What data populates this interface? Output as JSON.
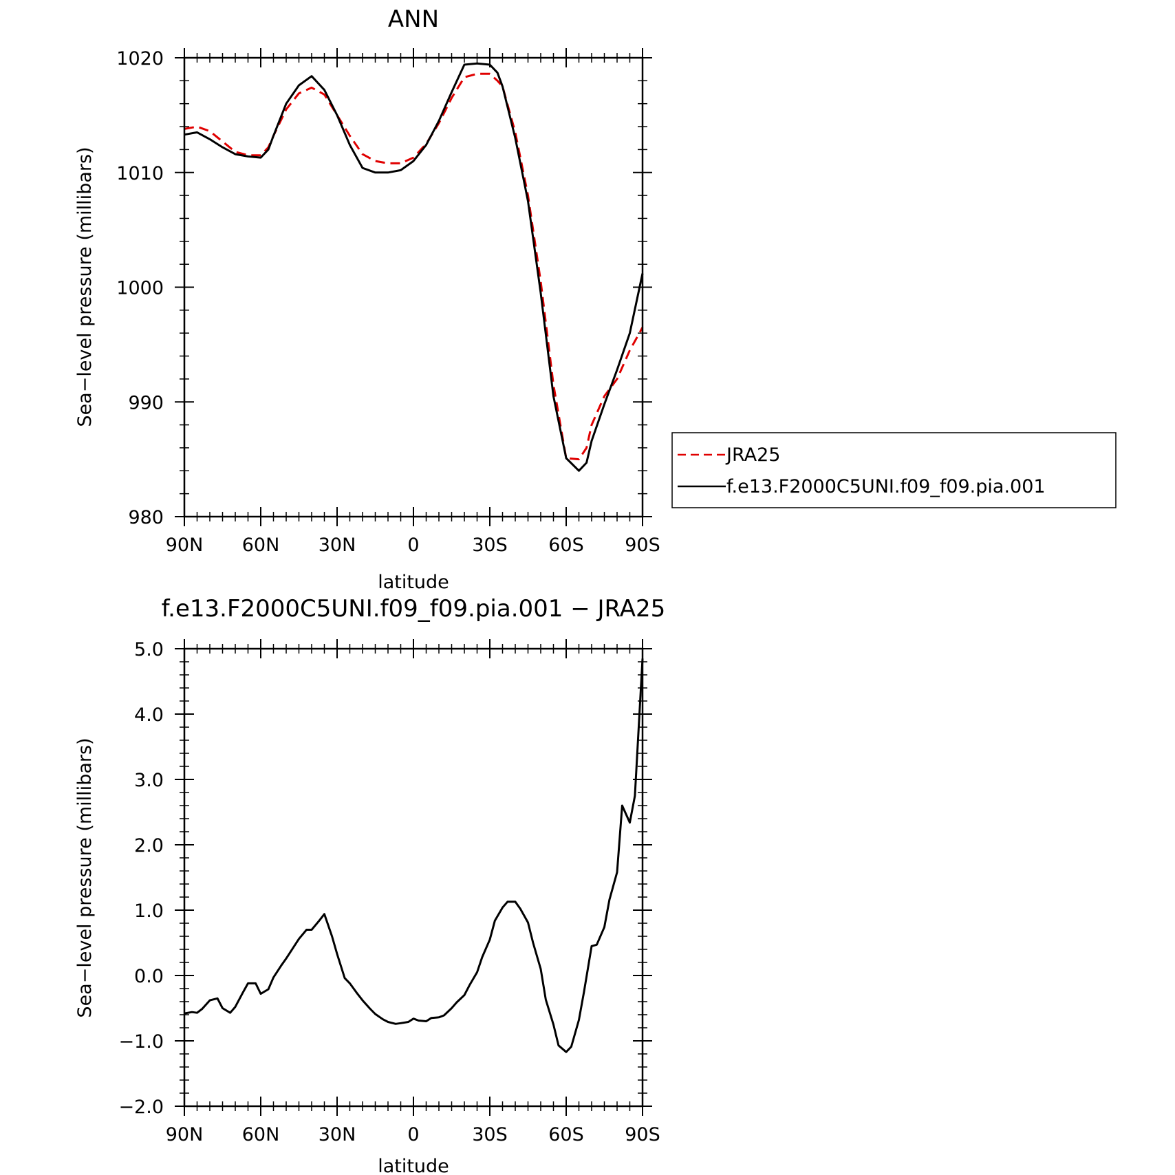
{
  "chart_data": [
    {
      "type": "line",
      "title": "ANN",
      "xlabel": "latitude",
      "ylabel": "Sea−level pressure (millibars)",
      "x_unit": "degrees latitude (positive = N, negative = S)",
      "xlim": [
        90,
        -90
      ],
      "ylim": [
        980,
        1020
      ],
      "x_ticks": [
        90,
        60,
        30,
        0,
        -30,
        -60,
        -90
      ],
      "x_tick_labels": [
        "90N",
        "60N",
        "30N",
        "0",
        "30S",
        "60S",
        "90S"
      ],
      "y_ticks": [
        1020,
        1010,
        1000,
        990,
        980
      ],
      "y_tick_labels": [
        "1020",
        "1010",
        "1000",
        "990",
        "980"
      ],
      "grid": false,
      "legend_position": "right",
      "series": [
        {
          "name": "JRA25",
          "color": "#e00000",
          "dash": "dashed",
          "x": [
            90,
            85,
            80,
            75,
            70,
            65,
            60,
            57,
            55,
            50,
            45,
            40,
            35,
            30,
            25,
            20,
            15,
            10,
            5,
            0,
            -5,
            -10,
            -15,
            -20,
            -25,
            -30,
            -33,
            -35,
            -40,
            -45,
            -50,
            -55,
            -60,
            -65,
            -68,
            -70,
            -75,
            -80,
            -85,
            -90
          ],
          "y": [
            1013.8,
            1014.0,
            1013.6,
            1012.7,
            1011.8,
            1011.5,
            1011.5,
            1012.2,
            1013.2,
            1015.5,
            1016.9,
            1017.4,
            1016.8,
            1015.0,
            1013.2,
            1011.6,
            1011.0,
            1010.8,
            1010.8,
            1011.3,
            1012.5,
            1014.3,
            1016.5,
            1018.3,
            1018.6,
            1018.6,
            1018.0,
            1017.5,
            1013.5,
            1008.0,
            1000.5,
            991.5,
            985.1,
            985.0,
            986.0,
            988.0,
            990.5,
            992.0,
            994.5,
            996.5
          ]
        },
        {
          "name": "f.e13.F2000C5UNI.f09_f09.pia.001",
          "color": "#000000",
          "dash": "solid",
          "x": [
            90,
            85,
            80,
            75,
            70,
            65,
            60,
            57,
            55,
            50,
            45,
            40,
            35,
            30,
            25,
            20,
            15,
            10,
            5,
            0,
            -5,
            -10,
            -15,
            -20,
            -25,
            -30,
            -33,
            -35,
            -40,
            -45,
            -50,
            -55,
            -60,
            -65,
            -68,
            -70,
            -75,
            -80,
            -85,
            -90
          ],
          "y": [
            1013.3,
            1013.5,
            1012.9,
            1012.2,
            1011.6,
            1011.4,
            1011.3,
            1012.0,
            1013.2,
            1016.0,
            1017.6,
            1018.4,
            1017.2,
            1015.0,
            1012.4,
            1010.4,
            1010.0,
            1010.0,
            1010.2,
            1011.0,
            1012.4,
            1014.5,
            1017.0,
            1019.4,
            1019.5,
            1019.4,
            1018.7,
            1017.5,
            1013.0,
            1007.5,
            999.5,
            990.5,
            985.1,
            984.0,
            984.7,
            986.6,
            989.8,
            992.8,
            996.0,
            1001.2
          ]
        }
      ]
    },
    {
      "type": "line",
      "title": "f.e13.F2000C5UNI.f09_f09.pia.001 − JRA25",
      "xlabel": "latitude",
      "ylabel": "Sea−level pressure (millibars)",
      "x_unit": "degrees latitude (positive = N, negative = S)",
      "xlim": [
        90,
        -90
      ],
      "ylim": [
        -2.0,
        5.0
      ],
      "x_ticks": [
        90,
        60,
        30,
        0,
        -30,
        -60,
        -90
      ],
      "x_tick_labels": [
        "90N",
        "60N",
        "30N",
        "0",
        "30S",
        "60S",
        "90S"
      ],
      "y_ticks": [
        5.0,
        4.0,
        3.0,
        2.0,
        1.0,
        0.0,
        -1.0,
        -2.0
      ],
      "y_tick_labels": [
        "5.0",
        "4.0",
        "3.0",
        "2.0",
        "1.0",
        "0.0",
        "−1.0",
        "−2.0"
      ],
      "grid": false,
      "series": [
        {
          "color": "#000000",
          "dash": "solid",
          "x": [
            90,
            87,
            85,
            83,
            80,
            77,
            75,
            72,
            70,
            67,
            65,
            62,
            60,
            57,
            55,
            52,
            50,
            47,
            45,
            42,
            40,
            37,
            35,
            32,
            30,
            27,
            25,
            22,
            20,
            17,
            15,
            12,
            10,
            7,
            5,
            2,
            0,
            -2,
            -5,
            -7,
            -10,
            -12,
            -15,
            -17,
            -20,
            -22,
            -25,
            -27,
            -30,
            -32,
            -35,
            -37,
            -40,
            -42,
            -45,
            -47,
            -50,
            -52,
            -55,
            -57,
            -60,
            -62,
            -65,
            -67,
            -70,
            -72,
            -75,
            -77,
            -80,
            -82,
            -85,
            -87,
            -90
          ],
          "y": [
            -0.58,
            -0.56,
            -0.57,
            -0.51,
            -0.38,
            -0.35,
            -0.5,
            -0.57,
            -0.48,
            -0.26,
            -0.12,
            -0.12,
            -0.28,
            -0.21,
            -0.03,
            0.15,
            0.26,
            0.44,
            0.56,
            0.7,
            0.7,
            0.84,
            0.94,
            0.6,
            0.33,
            -0.04,
            -0.12,
            -0.28,
            -0.38,
            -0.51,
            -0.59,
            -0.67,
            -0.71,
            -0.74,
            -0.73,
            -0.71,
            -0.66,
            -0.69,
            -0.7,
            -0.65,
            -0.64,
            -0.61,
            -0.5,
            -0.41,
            -0.3,
            -0.15,
            0.05,
            0.28,
            0.55,
            0.84,
            1.04,
            1.13,
            1.13,
            1.02,
            0.81,
            0.5,
            0.1,
            -0.37,
            -0.75,
            -1.07,
            -1.17,
            -1.09,
            -0.68,
            -0.25,
            0.45,
            0.47,
            0.74,
            1.16,
            1.58,
            2.6,
            2.34,
            2.75,
            4.85
          ]
        }
      ]
    }
  ]
}
